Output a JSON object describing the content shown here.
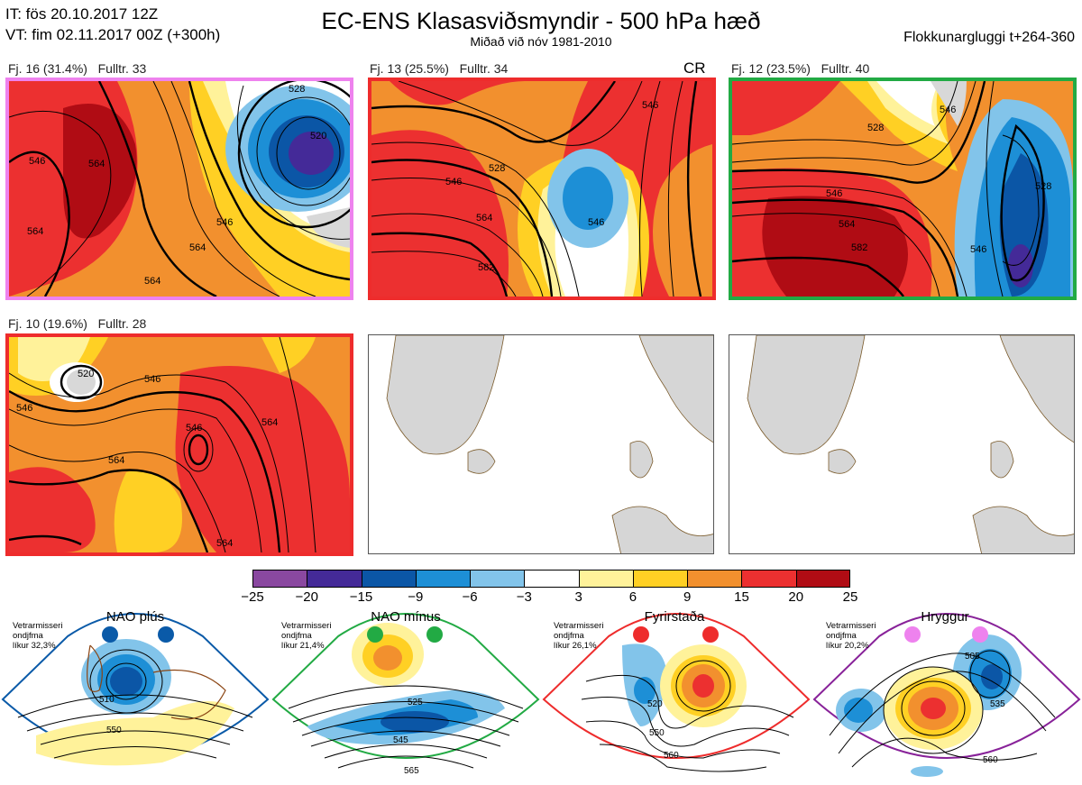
{
  "header": {
    "it_line": "IT: fös 20.10.2017 12Z",
    "vt_line": "VT: fim 02.11.2017 00Z  (+300h)",
    "title": "EC-ENS Klasasviðsmyndir - 500 hPa hæð",
    "subtitle": "Miðað við nóv 1981-2010",
    "window": "Flokkunargluggi t+264-360"
  },
  "colors": {
    "frame_c16": "#ee82ee",
    "frame_c13": "#ee2c2c",
    "frame_c12": "#22aa44",
    "frame_c10": "#ee2c2c",
    "nao_plus": "#0a5aa8",
    "nao_minus": "#22aa44",
    "blocking": "#ee2c2c",
    "ridge": "#882299"
  },
  "clusters": [
    {
      "label": "Fj. 16 (31.4%)",
      "rep": "Fulltr. 33",
      "extra": "",
      "contours": [
        "546",
        "564",
        "564",
        "546",
        "564",
        "528",
        "520",
        "564"
      ]
    },
    {
      "label": "Fj. 13 (25.5%)",
      "rep": "Fulltr. 34",
      "extra": "CR",
      "contours": [
        "546",
        "528",
        "546",
        "564",
        "546",
        "582"
      ]
    },
    {
      "label": "Fj. 12 (23.5%)",
      "rep": "Fulltr. 40",
      "extra": "",
      "contours": [
        "546",
        "528",
        "546",
        "564",
        "582",
        "546",
        "528"
      ]
    },
    {
      "label": "Fj. 10 (19.6%)",
      "rep": "Fulltr. 28",
      "extra": "",
      "contours": [
        "520",
        "546",
        "546",
        "564",
        "564",
        "564",
        "546"
      ]
    }
  ],
  "colorbar": {
    "ticks": [
      "−25",
      "−20",
      "−15",
      "−9",
      "−6",
      "−3",
      "3",
      "6",
      "9",
      "15",
      "20",
      "25"
    ],
    "colors": [
      "#8a48a0",
      "#442a98",
      "#0b56a6",
      "#1d8fd6",
      "#82c4ea",
      "#ffffff",
      "#fff29a",
      "#ffd024",
      "#f2902e",
      "#ec3030",
      "#b00c14"
    ]
  },
  "regimes": [
    {
      "name": "NAO plús",
      "note": [
        "Vetrarmisseri",
        "ondjfma",
        "líkur 32,3%"
      ],
      "contours": [
        "510",
        "550"
      ]
    },
    {
      "name": "NAO mínus",
      "note": [
        "Vetrarmisseri",
        "ondjfma",
        "líkur 21,4%"
      ],
      "contours": [
        "525",
        "545",
        "565"
      ]
    },
    {
      "name": "Fyrirstaða",
      "note": [
        "Vetrarmisseri",
        "ondjfma",
        "líkur 26,1%"
      ],
      "contours": [
        "520",
        "550",
        "560"
      ]
    },
    {
      "name": "Hryggur",
      "note": [
        "Vetrarmisseri",
        "ondjfma",
        "líkur 20,2%"
      ],
      "contours": [
        "505",
        "535",
        "560"
      ]
    }
  ]
}
